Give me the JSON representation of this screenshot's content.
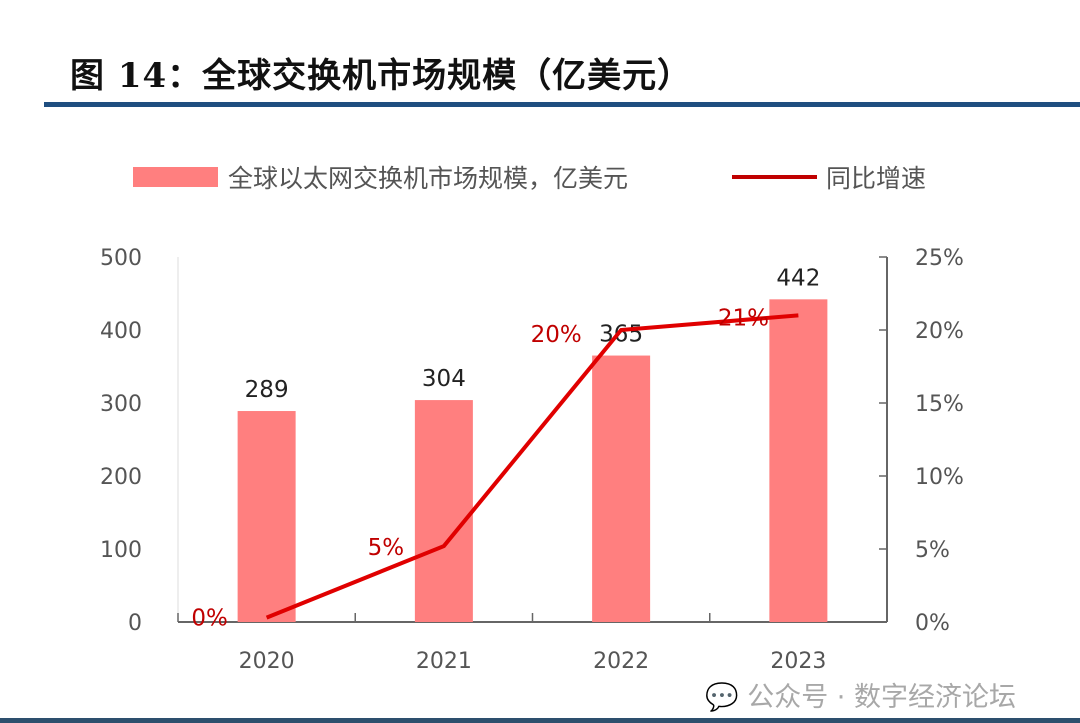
{
  "title": "图 14：全球交换机市场规模（亿美元）",
  "watermark": "公众号 · 数字经济论坛",
  "chart_data": {
    "type": "bar+line",
    "categories": [
      "2020",
      "2021",
      "2022",
      "2023"
    ],
    "series": [
      {
        "name": "全球以太网交换机市场规模，亿美元",
        "type": "bar",
        "axis": "left",
        "values": [
          289,
          304,
          365,
          442
        ],
        "labels": [
          "289",
          "304",
          "365",
          "442"
        ],
        "color": "#ff7f7f"
      },
      {
        "name": "同比增速",
        "type": "line",
        "axis": "right",
        "values": [
          0.3,
          5.2,
          20.0,
          21.0
        ],
        "labels": [
          "0%",
          "5%",
          "20%",
          "21%"
        ],
        "color": "#e00000"
      }
    ],
    "left_axis": {
      "range": [
        0,
        500
      ],
      "ticks": [
        "0",
        "100",
        "200",
        "300",
        "400",
        "500"
      ]
    },
    "right_axis": {
      "range": [
        0,
        25
      ],
      "ticks": [
        "0%",
        "5%",
        "10%",
        "15%",
        "20%",
        "25%"
      ]
    },
    "legend_position": "top",
    "grid": false
  }
}
